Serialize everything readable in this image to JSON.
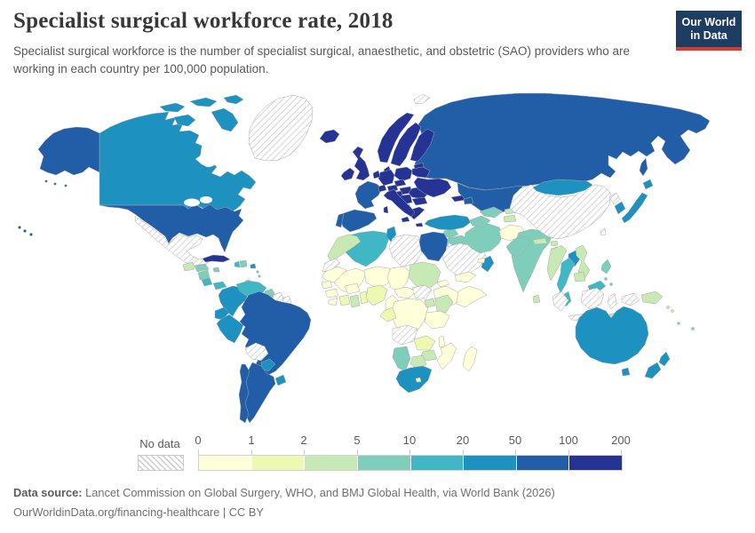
{
  "header": {
    "title": "Specialist surgical workforce rate, 2018",
    "subtitle": "Specialist surgical workforce is the number of specialist surgical, anaesthetic, and obstetric (SAO) providers who are working in each country per 100,000 population."
  },
  "logo": {
    "line1": "Our World",
    "line2": "in Data",
    "bg_color": "#1d3d63",
    "accent_color": "#d73c34"
  },
  "legend": {
    "no_data_label": "No data",
    "tick_labels": [
      "0",
      "1",
      "2",
      "5",
      "10",
      "20",
      "50",
      "100",
      "200"
    ]
  },
  "footer": {
    "datasource_label": "Data source:",
    "datasource_text": "Lancet Commission on Global Surgery, WHO, and BMJ Global Health, via World Bank (2026)",
    "link_line": "OurWorldinData.org/financing-healthcare | CC BY"
  },
  "chart_data": {
    "type": "heatmap",
    "subtype": "choropleth-world-map",
    "title": "Specialist surgical workforce rate, 2018",
    "unit": "SAO providers per 100,000 population",
    "legend_position": "bottom",
    "bins": [
      "0-1",
      "1-2",
      "2-5",
      "5-10",
      "10-20",
      "20-50",
      "50-100",
      "100-200"
    ],
    "bin_edges": [
      0,
      1,
      2,
      5,
      10,
      20,
      50,
      100,
      200
    ],
    "bin_colors": [
      "#ffffd9",
      "#edf8b1",
      "#c7e9b4",
      "#7fcdbb",
      "#41b6c4",
      "#1d91c0",
      "#225ea8",
      "#253494"
    ],
    "no_data_label": "No data",
    "countries": {
      "canada": "20-50",
      "usa": "50-100",
      "greenland": "No data",
      "mexico": "No data",
      "guatemala": "2-5",
      "honduras": "5-10",
      "nicaragua": "5-10",
      "costa-rica": "10-20",
      "panama": "10-20",
      "cuba": "100-200",
      "jamaica": "5-10",
      "haiti": "10-20",
      "dominican-republic": "5-10",
      "puerto-rico": "20-50",
      "lesser-antilles": "5-10",
      "trinidad": "2-5",
      "colombia": "20-50",
      "venezuela": "10-20",
      "guyana": "5-10",
      "suriname": "No data",
      "french-guiana": "No data",
      "ecuador": "20-50",
      "peru": "20-50",
      "brazil": "50-100",
      "bolivia": "No data",
      "paraguay": "20-50",
      "uruguay": "20-50",
      "argentina": "50-100",
      "chile": "50-100",
      "iceland": "100-200",
      "united-kingdom": "100-200",
      "ireland": "100-200",
      "norway": "100-200",
      "sweden": "100-200",
      "finland": "100-200",
      "denmark": "100-200",
      "baltic-states": "100-200",
      "poland": "100-200",
      "germany": "100-200",
      "benelux": "100-200",
      "france": "50-100",
      "spain": "50-100",
      "portugal": "50-100",
      "italy": "100-200",
      "switzerland": "100-200",
      "czechia": "100-200",
      "austria": "100-200",
      "hungary": "100-200",
      "croatia-bosnia": "100-200",
      "serbia": "100-200",
      "romania": "100-200",
      "bulgaria": "100-200",
      "albania": "20-50",
      "greece": "100-200",
      "ukraine": "100-200",
      "belarus": "100-200",
      "georgia": "100-200",
      "azerbaijan": "50-100",
      "russia": "50-100",
      "svalbard": "No data",
      "kazakhstan": "50-100",
      "turkey": "20-50",
      "syria": "5-10",
      "iraq": "5-10",
      "israel": "50-100",
      "jordan": "5-10",
      "saudi-arabia": "No data",
      "yemen": "0-1",
      "oman": "20-50",
      "uae": "0-1",
      "iran": "5-10",
      "afghanistan": "0-1",
      "turkmenistan": "5-10",
      "uzbekistan": "5-10",
      "kyrgyzstan": "2-5",
      "tajikistan": "2-5",
      "pakistan": "5-10",
      "india": "5-10",
      "nepal": "2-5",
      "bhutan": "2-5",
      "bangladesh": "2-5",
      "sri-lanka": "2-5",
      "china": "No data",
      "mongolia": "20-50",
      "north-korea": "No data",
      "south-korea": "20-50",
      "japan": "20-50",
      "taiwan": "No data",
      "myanmar": "2-5",
      "thailand": "10-20",
      "laos": "20-50",
      "vietnam": "2-5",
      "cambodia": "2-5",
      "malaysia": "10-20",
      "indonesia": "No data",
      "philippines": "5-10",
      "papua-new-guinea": "2-5",
      "timor-leste": "2-5",
      "solomon-islands": "2-5",
      "vanuatu": "5-10",
      "fiji": "5-10",
      "australia": "20-50",
      "new-zealand": "20-50",
      "morocco": "2-5",
      "western-sahara": "No data",
      "algeria": "10-20",
      "tunisia": "20-50",
      "libya": "No data",
      "egypt": "50-100",
      "mauritania": "0-1",
      "mali": "0-1",
      "senegal": "0-1",
      "guinea": "0-1",
      "sierra-leone": "0-1",
      "ivory-coast": "1-2",
      "ghana": "2-5",
      "togo-benin": "1-2",
      "burkina-faso": "0-1",
      "niger": "0-1",
      "nigeria": "1-2",
      "chad": "0-1",
      "sudan": "2-5",
      "south-sudan": "No data",
      "eritrea": "0-1",
      "ethiopia": "0-1",
      "somalia": "0-1",
      "cameroon": "0-1",
      "central-african-republic": "0-1",
      "dr-congo": "0-1",
      "gabon-congo": "1-2",
      "uganda": "2-5",
      "kenya": "2-5",
      "tanzania": "0-1",
      "angola": "No data",
      "zambia": "1-2",
      "malawi": "0-1",
      "mozambique": "0-1",
      "zimbabwe": "2-5",
      "botswana": "2-5",
      "namibia": "5-10",
      "south-africa": "20-50",
      "lesotho": "1-2",
      "madagascar": "0-1"
    }
  }
}
